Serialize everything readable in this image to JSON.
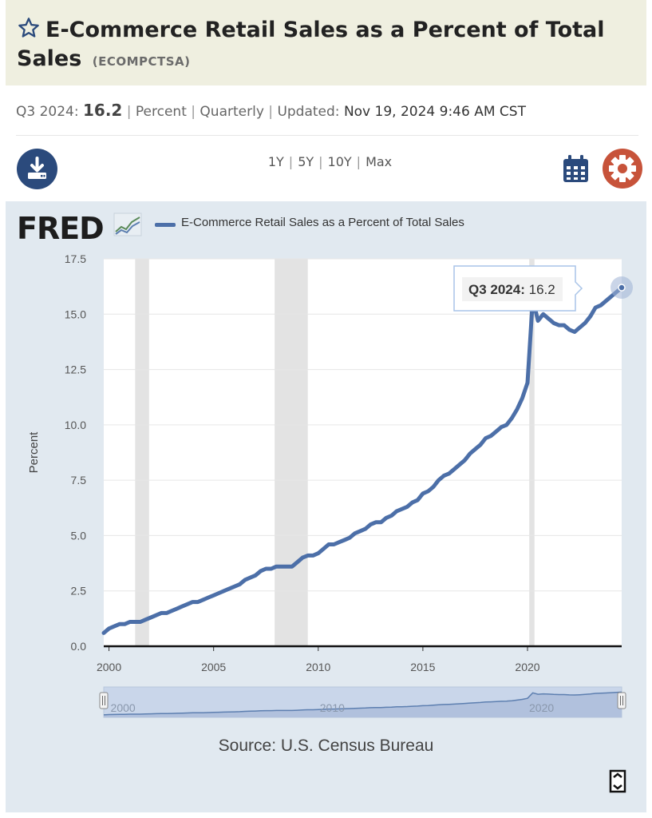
{
  "header": {
    "title": "E-Commerce Retail Sales as a Percent of Total Sales",
    "series_id": "(ECOMPCTSA)"
  },
  "meta": {
    "period": "Q3 2024:",
    "value": "16.2",
    "units": "Percent",
    "frequency": "Quarterly",
    "updated_label": "Updated:",
    "updated_value": "Nov 19, 2024 9:46 AM CST"
  },
  "toolbar": {
    "ranges": [
      "1Y",
      "5Y",
      "10Y",
      "Max"
    ],
    "download_icon": "download-icon",
    "calendar_icon": "calendar-icon",
    "settings_icon": "gear-icon"
  },
  "logo": {
    "text": "FRED"
  },
  "colors": {
    "line": "#4c6fa8",
    "recession": "#e3e3e3",
    "panel": "#e1e9f0",
    "title_band": "#efefe0",
    "settings": "#c7533a",
    "download": "#2b4a7c"
  },
  "source": "Source: U.S. Census Bureau",
  "tooltip": {
    "label": "Q3 2024:",
    "value": "16.2"
  },
  "navigator": {
    "labels": [
      "2000",
      "2010",
      "2020"
    ]
  },
  "chart_data": {
    "type": "line",
    "title": "",
    "xlabel": "",
    "ylabel": "Percent",
    "xlim": [
      1999.75,
      2024.5
    ],
    "ylim": [
      0,
      17.5
    ],
    "yticks": [
      0.0,
      2.5,
      5.0,
      7.5,
      10.0,
      12.5,
      15.0,
      17.5
    ],
    "ytick_labels": [
      "0.0",
      "2.5",
      "5.0",
      "7.5",
      "10.0",
      "12.5",
      "15.0",
      "17.5"
    ],
    "xticks": [
      2000,
      2005,
      2010,
      2015,
      2020
    ],
    "xtick_labels": [
      "2000",
      "2005",
      "2010",
      "2015",
      "2020"
    ],
    "grid": true,
    "legend_position": "top-left",
    "recessions": [
      [
        2001.25,
        2001.917
      ],
      [
        2007.917,
        2009.5
      ],
      [
        2020.083,
        2020.333
      ]
    ],
    "series": [
      {
        "name": "E-Commerce Retail Sales as a Percent of Total Sales",
        "x": [
          1999.75,
          2000.0,
          2000.25,
          2000.5,
          2000.75,
          2001.0,
          2001.25,
          2001.5,
          2001.75,
          2002.0,
          2002.25,
          2002.5,
          2002.75,
          2003.0,
          2003.25,
          2003.5,
          2003.75,
          2004.0,
          2004.25,
          2004.5,
          2004.75,
          2005.0,
          2005.25,
          2005.5,
          2005.75,
          2006.0,
          2006.25,
          2006.5,
          2006.75,
          2007.0,
          2007.25,
          2007.5,
          2007.75,
          2008.0,
          2008.25,
          2008.5,
          2008.75,
          2009.0,
          2009.25,
          2009.5,
          2009.75,
          2010.0,
          2010.25,
          2010.5,
          2010.75,
          2011.0,
          2011.25,
          2011.5,
          2011.75,
          2012.0,
          2012.25,
          2012.5,
          2012.75,
          2013.0,
          2013.25,
          2013.5,
          2013.75,
          2014.0,
          2014.25,
          2014.5,
          2014.75,
          2015.0,
          2015.25,
          2015.5,
          2015.75,
          2016.0,
          2016.25,
          2016.5,
          2016.75,
          2017.0,
          2017.25,
          2017.5,
          2017.75,
          2018.0,
          2018.25,
          2018.5,
          2018.75,
          2019.0,
          2019.25,
          2019.5,
          2019.75,
          2020.0,
          2020.25,
          2020.5,
          2020.75,
          2021.0,
          2021.25,
          2021.5,
          2021.75,
          2022.0,
          2022.25,
          2022.5,
          2022.75,
          2023.0,
          2023.25,
          2023.5,
          2023.75,
          2024.0,
          2024.25,
          2024.5
        ],
        "y": [
          0.6,
          0.8,
          0.9,
          1.0,
          1.0,
          1.1,
          1.1,
          1.1,
          1.2,
          1.3,
          1.4,
          1.5,
          1.5,
          1.6,
          1.7,
          1.8,
          1.9,
          2.0,
          2.0,
          2.1,
          2.2,
          2.3,
          2.4,
          2.5,
          2.6,
          2.7,
          2.8,
          3.0,
          3.1,
          3.2,
          3.4,
          3.5,
          3.5,
          3.6,
          3.6,
          3.6,
          3.6,
          3.8,
          4.0,
          4.1,
          4.1,
          4.2,
          4.4,
          4.6,
          4.6,
          4.7,
          4.8,
          4.9,
          5.1,
          5.2,
          5.3,
          5.5,
          5.6,
          5.6,
          5.8,
          5.9,
          6.1,
          6.2,
          6.3,
          6.5,
          6.6,
          6.9,
          7.0,
          7.2,
          7.5,
          7.7,
          7.8,
          8.0,
          8.2,
          8.4,
          8.7,
          8.9,
          9.1,
          9.4,
          9.5,
          9.7,
          9.9,
          10.0,
          10.3,
          10.7,
          11.2,
          11.9,
          15.7,
          14.7,
          15.0,
          14.8,
          14.6,
          14.5,
          14.5,
          14.3,
          14.2,
          14.4,
          14.6,
          14.9,
          15.3,
          15.4,
          15.6,
          15.8,
          16.0,
          16.2
        ]
      }
    ]
  }
}
